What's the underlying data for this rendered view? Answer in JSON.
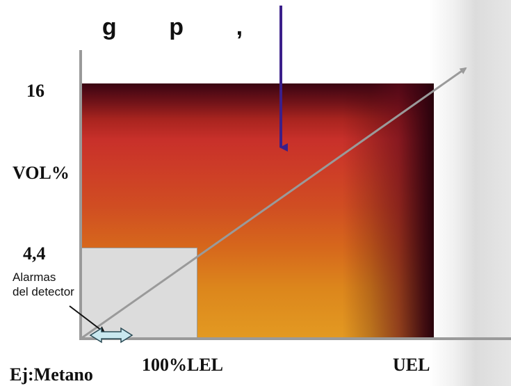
{
  "title": {
    "visible_fragment": "g        p        ,"
  },
  "y_axis": {
    "label": "VOL%",
    "tick_high": "16",
    "tick_low": "4,4"
  },
  "x_axis": {
    "tick_lel": "100%LEL",
    "tick_uel": "UEL"
  },
  "alarm": {
    "label_line1": "Alarmas",
    "label_line2": "del detector"
  },
  "example": {
    "label": "Ej:Metano"
  },
  "colors": {
    "axis": "#9a9a9a",
    "title_arrow": "#3b1f8a",
    "alarm_box": "#dcdcdc",
    "double_arrow_fill": "#c9e8ef",
    "double_arrow_stroke": "#2a4a55",
    "range_top": "#3a0412",
    "range_mid": "#c8302a",
    "range_bottom": "#e39a22"
  }
}
